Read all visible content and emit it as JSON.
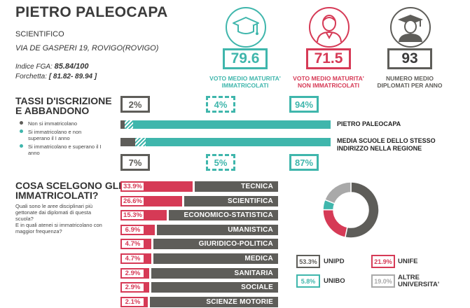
{
  "school": {
    "name": "PIETRO PALEOCAPA",
    "type": "SCIENTIFICO",
    "address": "VIA DE GASPERI 19, ROVIGO(ROVIGO)",
    "fga_label": "Indice FGA:",
    "fga_value": "85.84/100",
    "forchetta_label": "Forchetta:",
    "forchetta_value": "[ 81.82- 89.94 ]"
  },
  "stats": [
    {
      "icon": "graduation-cap-icon",
      "value": "79.6",
      "caption_1": "VOTO MEDIO MATURITA'",
      "caption_2": "IMMATRICOLATI",
      "color": "#3fb6ac"
    },
    {
      "icon": "student-person-icon",
      "value": "71.5",
      "caption_1": "VOTO MEDIO MATURITA'",
      "caption_2": "NON IMMATRICOLATI",
      "color": "#d63a56"
    },
    {
      "icon": "graduate-person-icon",
      "value": "93",
      "caption_1": "NUMERO MEDIO",
      "caption_2": "DIPLOMATI PER ANNO",
      "color": "#5e5d59"
    }
  ],
  "enrollment": {
    "title_1": "TASSI D'ISCRIZIONE",
    "title_2": "E ABBANDONO",
    "legend": [
      {
        "label_1": "Non si immatricolano",
        "label_2": "",
        "color": "#5e5d59"
      },
      {
        "label_1": "Si immatricolano e non",
        "label_2": "superano il I anno",
        "color": "#3fb6ac"
      },
      {
        "label_1": "Si immatricolano e superano il I",
        "label_2": "anno",
        "color": "#3fb6ac"
      }
    ],
    "school_row": {
      "label": "PIETRO PALEOCAPA",
      "values": {
        "not_enrolled": 2,
        "enrolled_dropped": 4,
        "enrolled_passed": 94
      },
      "pct_labels": [
        "2%",
        "4%",
        "94%"
      ]
    },
    "region_row": {
      "label_1": "MEDIA SCUOLE DELLO STESSO",
      "label_2": "INDIRIZZO NELLA REGIONE",
      "values": {
        "not_enrolled": 7,
        "enrolled_dropped": 5,
        "enrolled_passed": 87
      },
      "pct_labels": [
        "7%",
        "5%",
        "87%"
      ]
    }
  },
  "choices": {
    "title_1": "COSA SCELGONO GLI",
    "title_2": "IMMATRICOLATI?",
    "question_1": "Quali sono le aree disciplinari più gettonate dai diplomati di questa scuola?",
    "question_2": "E in quali atenei si immatricolano con maggior frequenza?",
    "areas": [
      {
        "label": "TECNICA",
        "pct": "33.9%",
        "value": 33.9
      },
      {
        "label": "SCIENTIFICA",
        "pct": "26.6%",
        "value": 26.6
      },
      {
        "label": "ECONOMICO-STATISTICA",
        "pct": "15.3%",
        "value": 15.3
      },
      {
        "label": "UMANISTICA",
        "pct": "6.9%",
        "value": 6.9
      },
      {
        "label": "GIURIDICO-POLITICA",
        "pct": "4.7%",
        "value": 4.7
      },
      {
        "label": "MEDICA",
        "pct": "4.7%",
        "value": 4.7
      },
      {
        "label": "SANITARIA",
        "pct": "2.9%",
        "value": 2.9
      },
      {
        "label": "SOCIALE",
        "pct": "2.9%",
        "value": 2.9
      },
      {
        "label": "SCIENZE MOTORIE",
        "pct": "2.1%",
        "value": 2.1
      }
    ],
    "universities": [
      {
        "name_1": "UNIPD",
        "name_2": "",
        "pct": "53.3%",
        "value": 53.3,
        "color": "#5e5d59"
      },
      {
        "name_1": "UNIFE",
        "name_2": "",
        "pct": "21.9%",
        "value": 21.9,
        "color": "#d63a56"
      },
      {
        "name_1": "UNIBO",
        "name_2": "",
        "pct": "5.8%",
        "value": 5.8,
        "color": "#3fb6ac"
      },
      {
        "name_1": "ALTRE",
        "name_2": "UNIVERSITA'",
        "pct": "19.0%",
        "value": 19.0,
        "color": "#a9a9a9"
      }
    ]
  }
}
